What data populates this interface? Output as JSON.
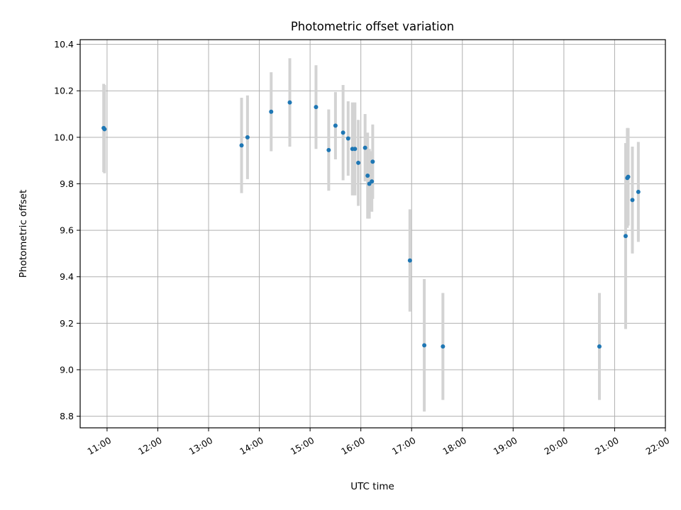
{
  "chart_data": {
    "type": "scatter",
    "title": "Photometric offset variation",
    "xlabel": "UTC time",
    "ylabel": "Photometric offset",
    "x_tick_labels": [
      "11:00",
      "12:00",
      "13:00",
      "14:00",
      "15:00",
      "16:00",
      "17:00",
      "18:00",
      "19:00",
      "20:00",
      "21:00",
      "22:00"
    ],
    "x_tick_hours": [
      11,
      12,
      13,
      14,
      15,
      16,
      17,
      18,
      19,
      20,
      21,
      22
    ],
    "xlim_hours": [
      10.47,
      22.0
    ],
    "y_ticks": [
      8.8,
      9.0,
      9.2,
      9.4,
      9.6,
      9.8,
      10.0,
      10.2,
      10.4
    ],
    "y_tick_labels": [
      "8.8",
      "9.0",
      "9.2",
      "9.4",
      "9.6",
      "9.8",
      "10.0",
      "10.2",
      "10.4"
    ],
    "ylim": [
      8.75,
      10.42
    ],
    "grid": true,
    "colors": {
      "point": "#1f77b4",
      "errorbar": "#d3d3d3",
      "grid": "#b0b0b0"
    },
    "points": [
      {
        "x": "10:56",
        "y": 10.04,
        "err": 0.19
      },
      {
        "x": "10:57",
        "y": 10.035,
        "err": 0.19
      },
      {
        "x": "13:39",
        "y": 9.965,
        "err": 0.205
      },
      {
        "x": "13:46",
        "y": 10.0,
        "err": 0.18
      },
      {
        "x": "14:14",
        "y": 10.11,
        "err": 0.17
      },
      {
        "x": "14:36",
        "y": 10.15,
        "err": 0.19
      },
      {
        "x": "15:07",
        "y": 10.13,
        "err": 0.18
      },
      {
        "x": "15:22",
        "y": 9.945,
        "err": 0.175
      },
      {
        "x": "15:30",
        "y": 10.05,
        "err": 0.145
      },
      {
        "x": "15:39",
        "y": 10.02,
        "err": 0.205
      },
      {
        "x": "15:45",
        "y": 9.995,
        "err": 0.16
      },
      {
        "x": "15:50",
        "y": 9.95,
        "err": 0.2
      },
      {
        "x": "15:53",
        "y": 9.95,
        "err": 0.2
      },
      {
        "x": "15:57",
        "y": 9.89,
        "err": 0.185
      },
      {
        "x": "16:05",
        "y": 9.955,
        "err": 0.145
      },
      {
        "x": "16:08",
        "y": 9.835,
        "err": 0.185
      },
      {
        "x": "16:10",
        "y": 9.8,
        "err": 0.15
      },
      {
        "x": "16:13",
        "y": 9.81,
        "err": 0.13
      },
      {
        "x": "16:14",
        "y": 9.895,
        "err": 0.16
      },
      {
        "x": "16:58",
        "y": 9.47,
        "err": 0.22
      },
      {
        "x": "17:15",
        "y": 9.105,
        "err": 0.285
      },
      {
        "x": "17:37",
        "y": 9.1,
        "err": 0.23
      },
      {
        "x": "20:42",
        "y": 9.1,
        "err": 0.23
      },
      {
        "x": "21:13",
        "y": 9.575,
        "err": 0.4
      },
      {
        "x": "21:15",
        "y": 9.825,
        "err": 0.215
      },
      {
        "x": "21:16",
        "y": 9.83,
        "err": 0.21
      },
      {
        "x": "21:21",
        "y": 9.73,
        "err": 0.23
      },
      {
        "x": "21:28",
        "y": 9.765,
        "err": 0.215
      }
    ]
  }
}
